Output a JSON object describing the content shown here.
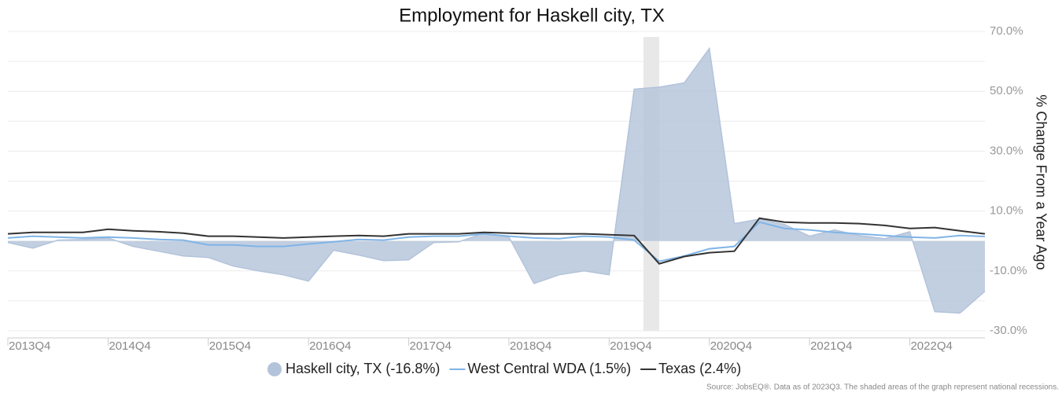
{
  "chart_data": {
    "type": "line",
    "title": "Employment for Haskell city, TX",
    "y_axis_label": "% Change From a Year Ago",
    "source": "Source: JobsEQ®. Data as of 2023Q3. The shaded areas of the graph represent national recessions.",
    "categories": [
      "2013Q4",
      null,
      null,
      null,
      "2014Q4",
      null,
      null,
      null,
      "2015Q4",
      null,
      null,
      null,
      "2016Q4",
      null,
      null,
      null,
      "2017Q4",
      null,
      null,
      null,
      "2018Q4",
      null,
      null,
      null,
      "2019Q4",
      null,
      null,
      null,
      "2020Q4",
      null,
      null,
      null,
      "2021Q4",
      null,
      null,
      null,
      "2022Q4",
      null,
      null,
      null
    ],
    "series": [
      {
        "name": "Haskell city, TX (-16.8%)",
        "kind": "area",
        "color": "#b3c3da",
        "values": [
          -0.5,
          -2.4,
          0.3,
          0.5,
          1,
          -1.8,
          -3.4,
          -5,
          -5.5,
          -8.4,
          -10,
          -11.3,
          -13.4,
          -3.1,
          -4.7,
          -6.6,
          -6.3,
          -0.5,
          -0.3,
          2.6,
          1.3,
          -14.2,
          -11.3,
          -10,
          -11.3,
          50.7,
          51.4,
          52.8,
          64.3,
          5.8,
          7.3,
          5.5,
          1.6,
          3.7,
          1.8,
          0.8,
          3.1,
          -23.6,
          -24.1,
          -16.8
        ]
      },
      {
        "name": "West Central WDA (1.5%)",
        "kind": "line",
        "color": "#7fb4e6",
        "values": [
          1,
          1.6,
          1.3,
          1,
          1.3,
          1,
          0.5,
          0.3,
          -1.3,
          -1.3,
          -1.8,
          -1.8,
          -1,
          -0.3,
          0.5,
          0.3,
          1.3,
          1.6,
          1.6,
          2.4,
          1.6,
          1,
          0.8,
          1.6,
          1.3,
          0.3,
          -6.8,
          -5,
          -2.6,
          -1.8,
          6.3,
          4.2,
          3.7,
          2.9,
          2.4,
          1.8,
          1.3,
          1,
          1.8,
          1.5
        ]
      },
      {
        "name": "Texas (2.4%)",
        "kind": "line",
        "color": "#333333",
        "values": [
          2.4,
          2.9,
          2.9,
          2.9,
          3.9,
          3.4,
          3.1,
          2.6,
          1.6,
          1.6,
          1.3,
          1,
          1.3,
          1.6,
          1.8,
          1.6,
          2.4,
          2.4,
          2.4,
          2.9,
          2.6,
          2.4,
          2.4,
          2.4,
          2.1,
          1.8,
          -7.6,
          -5.2,
          -3.9,
          -3.4,
          7.6,
          6.3,
          6,
          6,
          5.8,
          5.2,
          4.2,
          4.5,
          3.4,
          2.4
        ]
      }
    ],
    "ylim": [
      -30,
      70
    ],
    "yticks": [
      {
        "value": 70,
        "label": "70.0%"
      },
      {
        "value": 50,
        "label": "50.0%"
      },
      {
        "value": 30,
        "label": "30.0%"
      },
      {
        "value": 10,
        "label": "10.0%"
      },
      {
        "value": -10,
        "label": "-10.0%"
      },
      {
        "value": -30,
        "label": "-30.0%"
      }
    ],
    "minor_yticks": [
      60,
      40,
      20,
      0,
      -20
    ],
    "grid": true,
    "legend": "bottom"
  }
}
